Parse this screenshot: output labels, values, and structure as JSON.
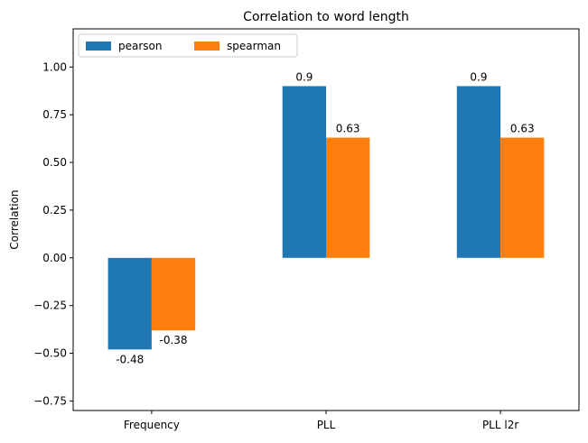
{
  "chart_data": {
    "type": "bar",
    "title": "Correlation to word length",
    "xlabel": "",
    "ylabel": "Correlation",
    "categories": [
      "Frequency",
      "PLL",
      "PLL l2r"
    ],
    "series": [
      {
        "name": "pearson",
        "color": "#1f77b4",
        "values": [
          -0.48,
          0.9,
          0.9
        ],
        "labels": [
          "-0.48",
          "0.9",
          "0.9"
        ]
      },
      {
        "name": "spearman",
        "color": "#ff7f0e",
        "values": [
          -0.38,
          0.63,
          0.63
        ],
        "labels": [
          "-0.38",
          "0.63",
          "0.63"
        ]
      }
    ],
    "ylim": [
      -0.8,
      1.2
    ],
    "yticks": [
      -0.75,
      -0.5,
      -0.25,
      0.0,
      0.25,
      0.5,
      0.75,
      1.0
    ],
    "ytick_labels": [
      "−0.75",
      "−0.50",
      "−0.25",
      "0.00",
      "0.25",
      "0.50",
      "0.75",
      "1.00"
    ],
    "grid": false,
    "legend_position": "top-left",
    "legend_columns": 2
  }
}
